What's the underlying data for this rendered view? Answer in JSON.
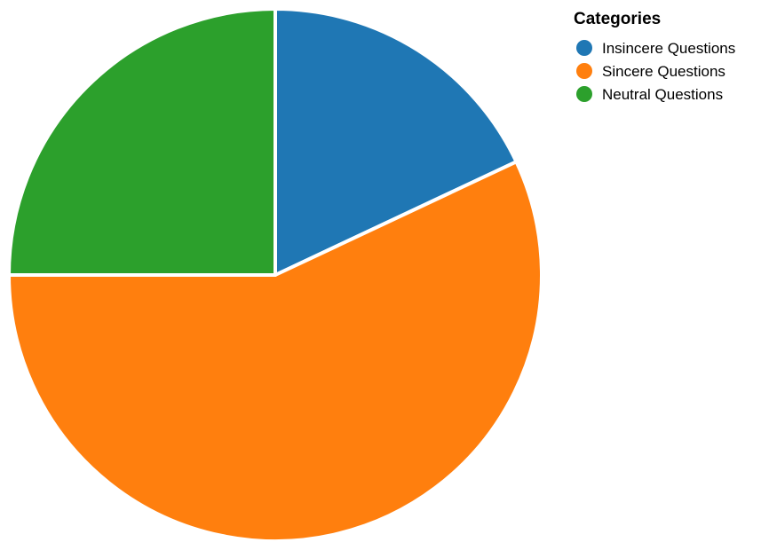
{
  "chart_data": {
    "type": "pie",
    "title": "",
    "categories": [
      "Insincere Questions",
      "Sincere Questions",
      "Neutral Questions"
    ],
    "values": [
      18,
      57,
      25
    ],
    "colors": [
      "#1f77b4",
      "#ff7f0e",
      "#2ca02c"
    ],
    "legend": {
      "title": "Categories",
      "placement": "top-right"
    }
  }
}
